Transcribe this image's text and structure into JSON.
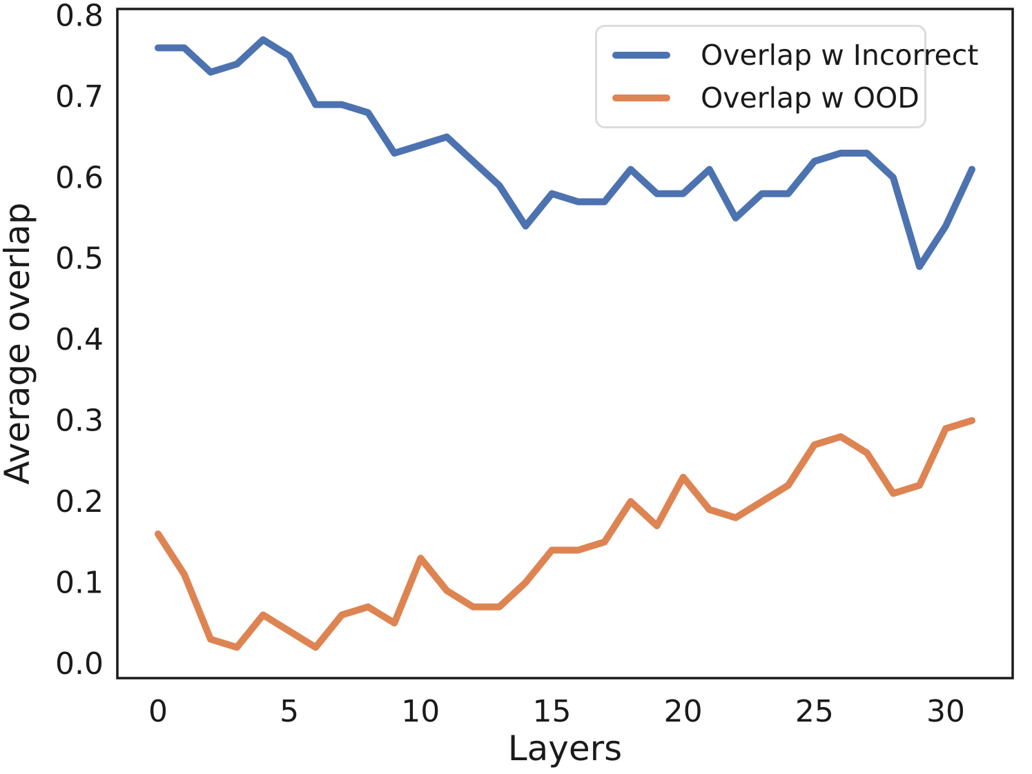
{
  "figure": {
    "background_color": "#ffffff",
    "spine_color": "#1a1a1a",
    "text_color": "#1a1a1a"
  },
  "chart_data": {
    "type": "line",
    "title": "",
    "xlabel": "Layers",
    "ylabel": "Average overlap",
    "grid": false,
    "legend_position": "upper right",
    "xlim": [
      -1.55,
      32.55
    ],
    "ylim": [
      -0.018,
      0.808
    ],
    "x": [
      0,
      1,
      2,
      3,
      4,
      5,
      6,
      7,
      8,
      9,
      10,
      11,
      12,
      13,
      14,
      15,
      16,
      17,
      18,
      19,
      20,
      21,
      22,
      23,
      24,
      25,
      26,
      27,
      28,
      29,
      30,
      31
    ],
    "xticks": [
      {
        "value": 0,
        "label": "0"
      },
      {
        "value": 5,
        "label": "5"
      },
      {
        "value": 10,
        "label": "10"
      },
      {
        "value": 15,
        "label": "15"
      },
      {
        "value": 20,
        "label": "20"
      },
      {
        "value": 25,
        "label": "25"
      },
      {
        "value": 30,
        "label": "30"
      }
    ],
    "yticks": [
      {
        "value": 0.0,
        "label": "0.0"
      },
      {
        "value": 0.1,
        "label": "0.1"
      },
      {
        "value": 0.2,
        "label": "0.2"
      },
      {
        "value": 0.3,
        "label": "0.3"
      },
      {
        "value": 0.4,
        "label": "0.4"
      },
      {
        "value": 0.5,
        "label": "0.5"
      },
      {
        "value": 0.6,
        "label": "0.6"
      },
      {
        "value": 0.7,
        "label": "0.7"
      },
      {
        "value": 0.8,
        "label": "0.8"
      }
    ],
    "series": [
      {
        "name": "Overlap w Incorrect",
        "color": "#4C72B0",
        "values": [
          0.76,
          0.76,
          0.73,
          0.74,
          0.77,
          0.75,
          0.69,
          0.69,
          0.68,
          0.63,
          0.64,
          0.65,
          0.62,
          0.59,
          0.54,
          0.58,
          0.57,
          0.57,
          0.61,
          0.58,
          0.58,
          0.61,
          0.55,
          0.58,
          0.58,
          0.62,
          0.63,
          0.63,
          0.6,
          0.49,
          0.54,
          0.61
        ]
      },
      {
        "name": "Overlap w OOD",
        "color": "#DD8452",
        "values": [
          0.16,
          0.11,
          0.03,
          0.02,
          0.06,
          0.04,
          0.02,
          0.06,
          0.07,
          0.05,
          0.13,
          0.09,
          0.07,
          0.07,
          0.1,
          0.14,
          0.14,
          0.15,
          0.2,
          0.17,
          0.23,
          0.19,
          0.18,
          0.2,
          0.22,
          0.27,
          0.28,
          0.26,
          0.21,
          0.22,
          0.29,
          0.3
        ]
      }
    ]
  }
}
